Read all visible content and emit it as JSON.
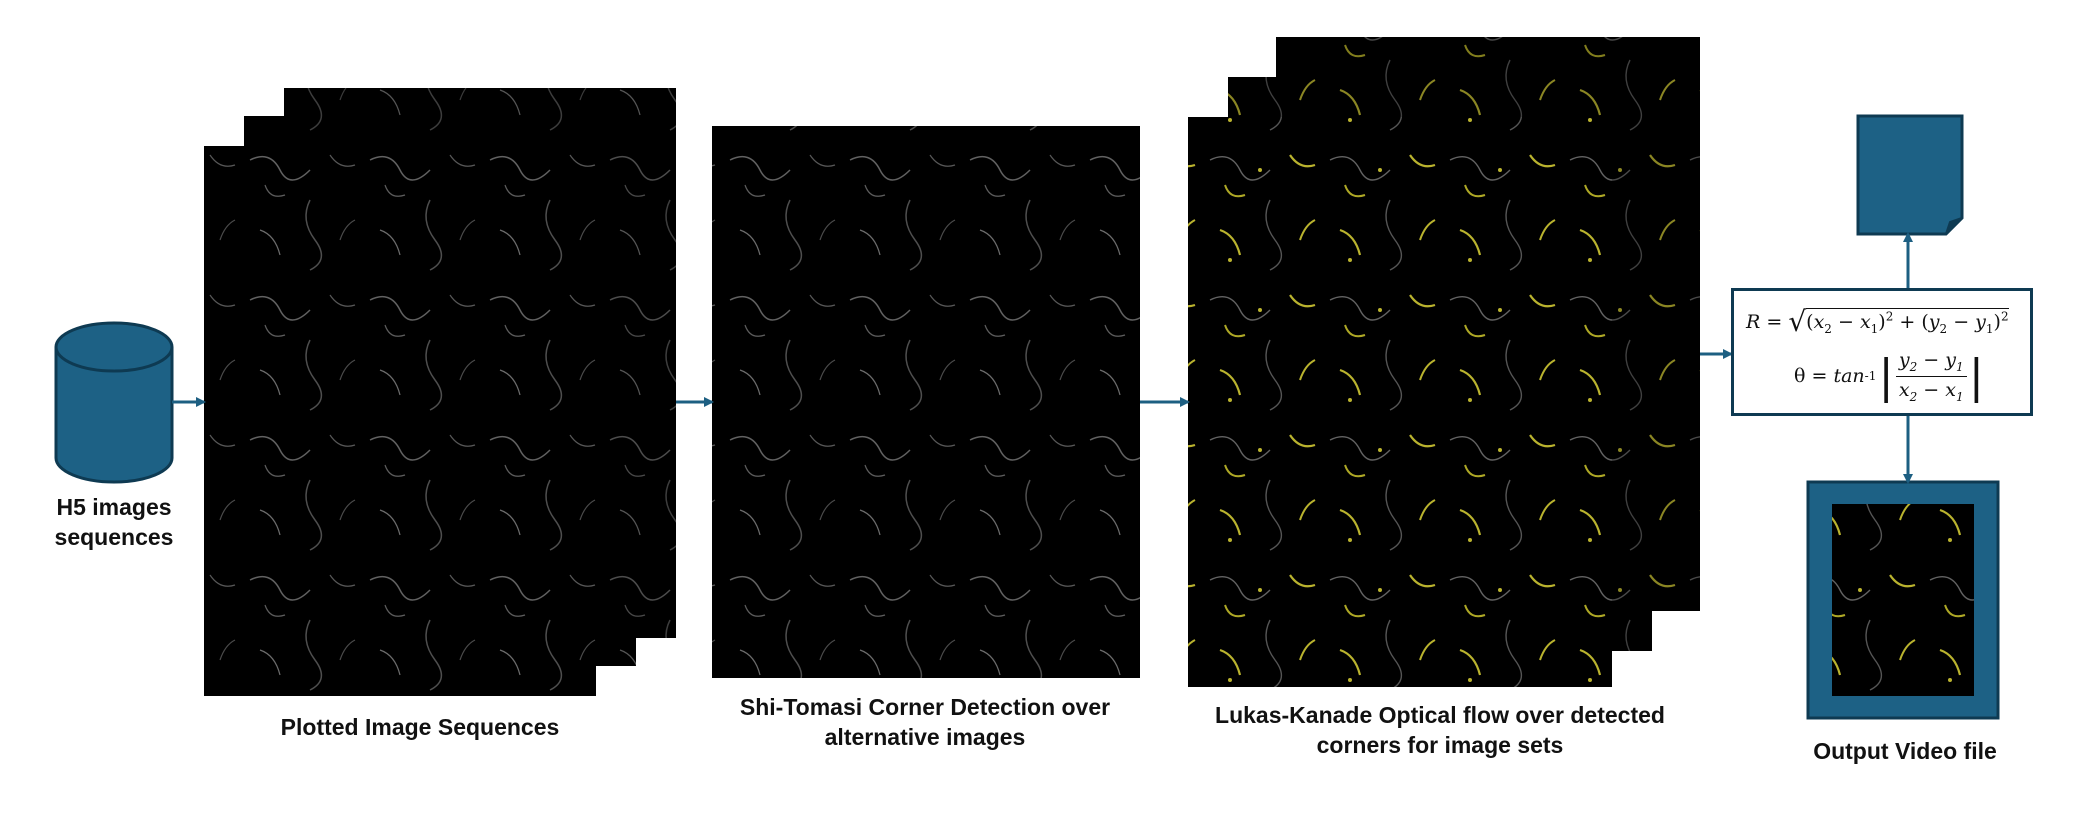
{
  "labels": {
    "h5": [
      "H5 images",
      "sequences"
    ],
    "plotted": "Plotted Image Sequences",
    "shi_tomasi": [
      "Shi-Tomasi Corner Detection over",
      "alternative images"
    ],
    "lukas_kanade": [
      "Lukas-Kanade Optical flow over detected",
      "corners for image sets"
    ],
    "output_video": "Output Video file"
  },
  "formula": {
    "r_lhs": "R =",
    "theta_lhs": "θ =",
    "theta_func": "tan",
    "theta_exp": "-1"
  },
  "colors": {
    "accent": "#1d6185",
    "accent_dark": "#0e3a52",
    "arrow": "#1d5f82",
    "image_bg": "#000000",
    "flow_points": "#e8e03a"
  }
}
